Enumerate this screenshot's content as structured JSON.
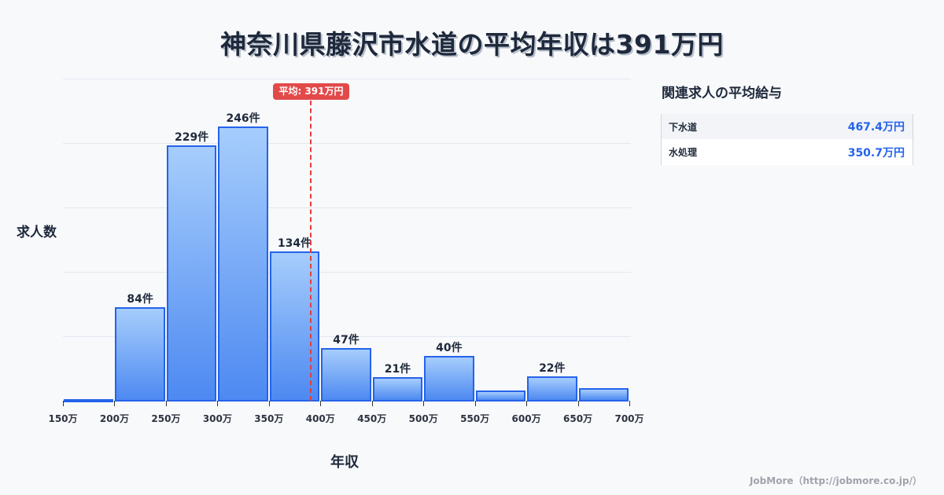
{
  "title": "神奈川県藤沢市水道の平均年収は391万円",
  "chart_data": {
    "type": "bar",
    "title": "神奈川県藤沢市水道の平均年収は391万円",
    "xlabel": "年収",
    "ylabel": "求人数",
    "categories": [
      "150-200万",
      "200-250万",
      "250-300万",
      "300-350万",
      "350-400万",
      "400-450万",
      "450-500万",
      "500-550万",
      "550-600万",
      "600-650万",
      "650-700万"
    ],
    "values": [
      1,
      84,
      229,
      246,
      134,
      47,
      21,
      40,
      9,
      22,
      11
    ],
    "labels": [
      "",
      "84件",
      "229件",
      "246件",
      "134件",
      "47件",
      "21件",
      "40件",
      "",
      "22件",
      ""
    ],
    "x_ticks": [
      "150万",
      "200万",
      "250万",
      "300万",
      "350万",
      "400万",
      "450万",
      "500万",
      "550万",
      "600万",
      "650万",
      "700万"
    ],
    "x_range": [
      150,
      700
    ],
    "ylim": [
      0,
      289
    ],
    "grid": true,
    "average": {
      "value": 391,
      "label": "平均: 391万円",
      "color": "#e53e3e"
    },
    "bar_color": "#2563eb"
  },
  "side_panel": {
    "title": "関連求人の平均給与",
    "rows": [
      {
        "name": "下水道",
        "value": "467.4万円"
      },
      {
        "name": "水処理",
        "value": "350.7万円"
      }
    ]
  },
  "footer": "JobMore（http://jobmore.co.jp/）"
}
